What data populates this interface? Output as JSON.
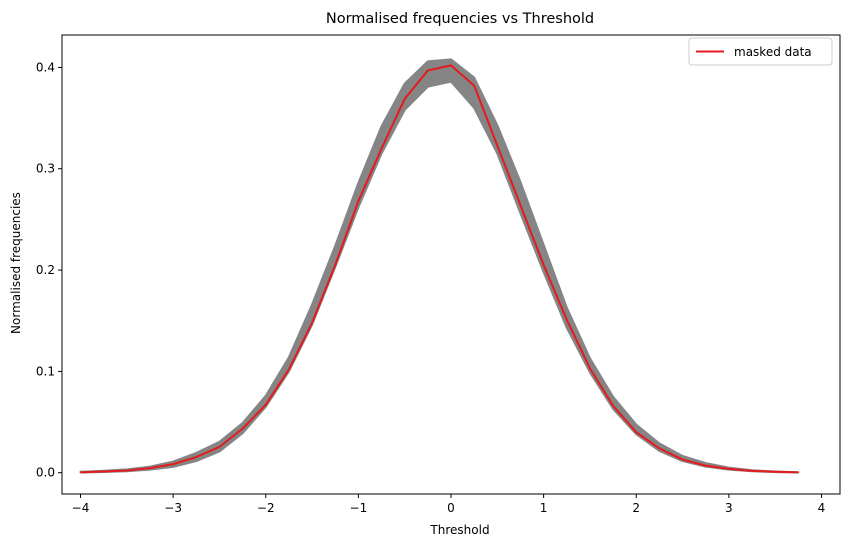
{
  "chart_data": {
    "type": "line",
    "title": "Normalised frequencies vs Threshold",
    "xlabel": "Threshold",
    "ylabel": "Normalised frequencies",
    "xlim": [
      -4.2,
      4.2
    ],
    "ylim": [
      -0.021,
      0.432
    ],
    "xticks": [
      -4,
      -3,
      -2,
      -1,
      0,
      1,
      2,
      3,
      4
    ],
    "xtick_labels": [
      "−4",
      "−3",
      "−2",
      "−1",
      "0",
      "1",
      "2",
      "3",
      "4"
    ],
    "yticks": [
      0.0,
      0.1,
      0.2,
      0.3,
      0.4
    ],
    "ytick_labels": [
      "0.0",
      "0.1",
      "0.2",
      "0.3",
      "0.4"
    ],
    "grid": false,
    "legend_position": "top-right",
    "x": [
      -4.0,
      -3.75,
      -3.5,
      -3.25,
      -3.0,
      -2.75,
      -2.5,
      -2.25,
      -2.0,
      -1.75,
      -1.5,
      -1.25,
      -1.0,
      -0.75,
      -0.5,
      -0.25,
      0.0,
      0.25,
      0.5,
      0.75,
      1.0,
      1.25,
      1.5,
      1.75,
      2.0,
      2.25,
      2.5,
      2.75,
      3.0,
      3.25,
      3.5,
      3.75
    ],
    "series": [
      {
        "name": "masked data",
        "color": "#e41a1c",
        "values": [
          0.0004,
          0.0012,
          0.0022,
          0.0045,
          0.0085,
          0.0155,
          0.0255,
          0.0435,
          0.067,
          0.102,
          0.148,
          0.205,
          0.268,
          0.32,
          0.369,
          0.397,
          0.402,
          0.382,
          0.323,
          0.264,
          0.205,
          0.151,
          0.103,
          0.066,
          0.04,
          0.024,
          0.013,
          0.007,
          0.0038,
          0.0018,
          0.0009,
          0.0003
        ]
      }
    ],
    "band": {
      "color": "#7f7f7f",
      "lower": [
        0.0002,
        0.0007,
        0.0014,
        0.003,
        0.0058,
        0.0115,
        0.021,
        0.039,
        0.065,
        0.1,
        0.146,
        0.203,
        0.262,
        0.315,
        0.358,
        0.381,
        0.386,
        0.36,
        0.315,
        0.256,
        0.198,
        0.143,
        0.099,
        0.063,
        0.038,
        0.0215,
        0.0115,
        0.006,
        0.003,
        0.0014,
        0.0006,
        0.0002
      ],
      "upper": [
        0.0009,
        0.002,
        0.0033,
        0.006,
        0.011,
        0.0195,
        0.0305,
        0.049,
        0.076,
        0.114,
        0.166,
        0.224,
        0.286,
        0.342,
        0.384,
        0.406,
        0.408,
        0.39,
        0.343,
        0.287,
        0.225,
        0.163,
        0.113,
        0.075,
        0.0475,
        0.029,
        0.0165,
        0.0095,
        0.005,
        0.0025,
        0.0012,
        0.0005
      ]
    }
  }
}
